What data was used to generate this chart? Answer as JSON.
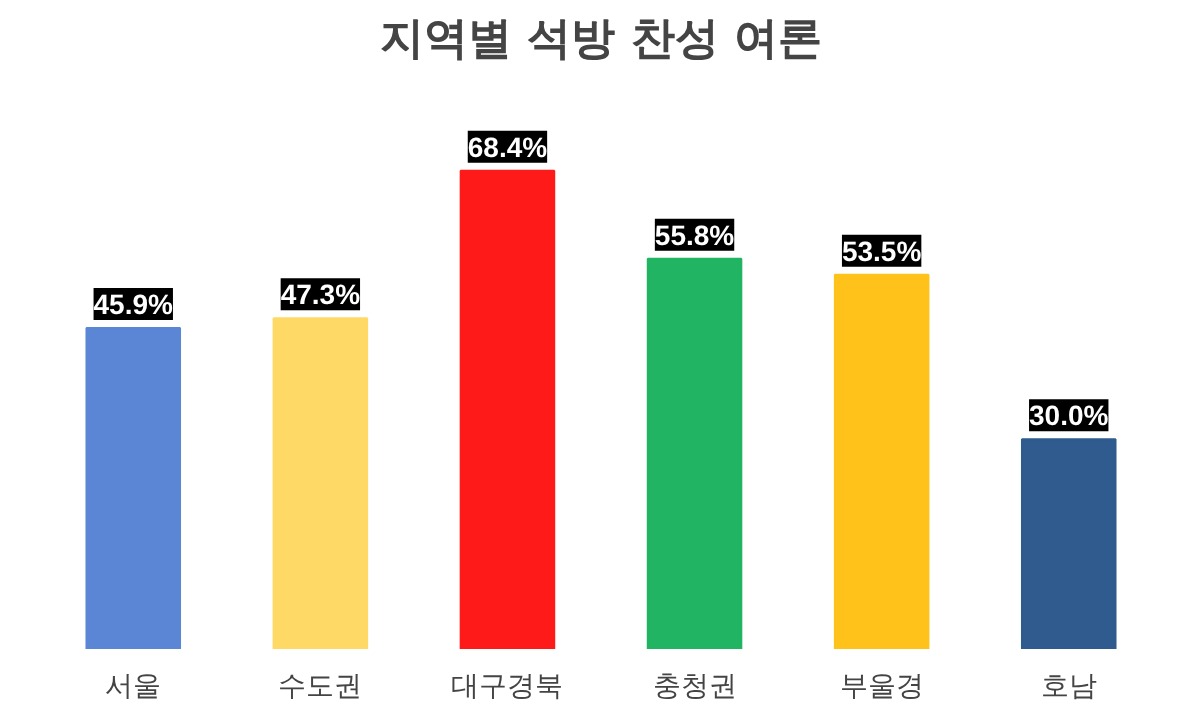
{
  "chart_data": {
    "type": "bar",
    "title": "지역별 석방 찬성 여론",
    "categories": [
      "서울",
      "수도권",
      "대구경북",
      "충청권",
      "부울경",
      "호남"
    ],
    "values": [
      45.9,
      47.3,
      68.4,
      55.8,
      53.5,
      30.0
    ],
    "colors": [
      "#5b86d6",
      "#ffd966",
      "#ff1a1a",
      "#21b462",
      "#ffc21a",
      "#2f5b8e"
    ],
    "value_labels": [
      "45.9%",
      "47.3%",
      "68.4%",
      "55.8%",
      "53.5%",
      "30.0%"
    ],
    "grid": false
  }
}
